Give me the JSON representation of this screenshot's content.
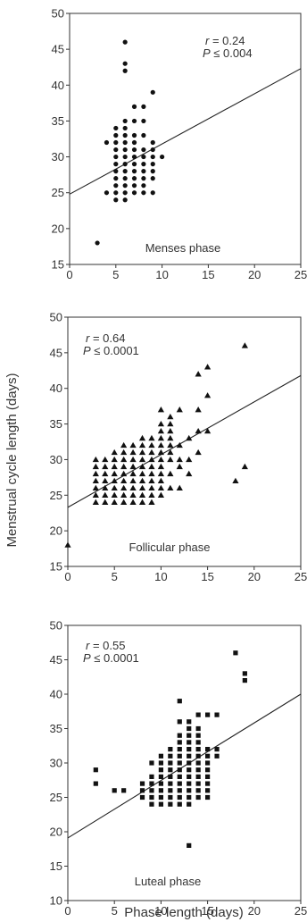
{
  "chart_data": {
    "ylabel": "Menstrual cycle length (days)",
    "xlabel": "Phase length (days)",
    "panels": [
      {
        "type": "scatter",
        "marker": "circle",
        "name": "Menses phase",
        "r_label": "r",
        "r_value": "= 0.24",
        "p_label": "P",
        "p_value": "≤ 0.004",
        "xlim": [
          0,
          25
        ],
        "ylim": [
          15,
          50
        ],
        "xticks": [
          0,
          5,
          10,
          15,
          20,
          25
        ],
        "yticks": [
          15,
          20,
          25,
          30,
          35,
          40,
          45,
          50
        ],
        "trend": [
          [
            0,
            24.8
          ],
          [
            25,
            42.3
          ]
        ],
        "points": [
          [
            3,
            18
          ],
          [
            4,
            25
          ],
          [
            4,
            32
          ],
          [
            5,
            24
          ],
          [
            5,
            25
          ],
          [
            5,
            26
          ],
          [
            5,
            27
          ],
          [
            5,
            28
          ],
          [
            5,
            29
          ],
          [
            5,
            30
          ],
          [
            5,
            31
          ],
          [
            5,
            32
          ],
          [
            5,
            33
          ],
          [
            5,
            34
          ],
          [
            6,
            24
          ],
          [
            6,
            25
          ],
          [
            6,
            26
          ],
          [
            6,
            27
          ],
          [
            6,
            28
          ],
          [
            6,
            29
          ],
          [
            6,
            30
          ],
          [
            6,
            31
          ],
          [
            6,
            32
          ],
          [
            6,
            33
          ],
          [
            6,
            34
          ],
          [
            6,
            35
          ],
          [
            6,
            42
          ],
          [
            6,
            43
          ],
          [
            6,
            46
          ],
          [
            7,
            25
          ],
          [
            7,
            26
          ],
          [
            7,
            27
          ],
          [
            7,
            28
          ],
          [
            7,
            29
          ],
          [
            7,
            30
          ],
          [
            7,
            31
          ],
          [
            7,
            32
          ],
          [
            7,
            33
          ],
          [
            7,
            35
          ],
          [
            7,
            37
          ],
          [
            8,
            25
          ],
          [
            8,
            26
          ],
          [
            8,
            27
          ],
          [
            8,
            28
          ],
          [
            8,
            29
          ],
          [
            8,
            30
          ],
          [
            8,
            31
          ],
          [
            8,
            33
          ],
          [
            8,
            35
          ],
          [
            8,
            37
          ],
          [
            9,
            25
          ],
          [
            9,
            27
          ],
          [
            9,
            28
          ],
          [
            9,
            29
          ],
          [
            9,
            30
          ],
          [
            9,
            31
          ],
          [
            9,
            32
          ],
          [
            9,
            39
          ],
          [
            10,
            30
          ]
        ]
      },
      {
        "type": "scatter",
        "marker": "triangle",
        "name": "Follicular phase",
        "r_label": "r",
        "r_value": "= 0.64",
        "p_label": "P",
        "p_value": "≤ 0.0001",
        "xlim": [
          0,
          25
        ],
        "ylim": [
          15,
          50
        ],
        "xticks": [
          0,
          5,
          10,
          15,
          20,
          25
        ],
        "yticks": [
          15,
          20,
          25,
          30,
          35,
          40,
          45,
          50
        ],
        "trend": [
          [
            0,
            23.3
          ],
          [
            25,
            41.8
          ]
        ],
        "points": [
          [
            0,
            18
          ],
          [
            3,
            24
          ],
          [
            3,
            25
          ],
          [
            3,
            26
          ],
          [
            3,
            27
          ],
          [
            3,
            28
          ],
          [
            3,
            29
          ],
          [
            3,
            30
          ],
          [
            4,
            24
          ],
          [
            4,
            25
          ],
          [
            4,
            26
          ],
          [
            4,
            27
          ],
          [
            4,
            28
          ],
          [
            4,
            29
          ],
          [
            4,
            30
          ],
          [
            5,
            24
          ],
          [
            5,
            25
          ],
          [
            5,
            26
          ],
          [
            5,
            27
          ],
          [
            5,
            28
          ],
          [
            5,
            29
          ],
          [
            5,
            30
          ],
          [
            5,
            31
          ],
          [
            6,
            24
          ],
          [
            6,
            25
          ],
          [
            6,
            26
          ],
          [
            6,
            27
          ],
          [
            6,
            28
          ],
          [
            6,
            29
          ],
          [
            6,
            30
          ],
          [
            6,
            31
          ],
          [
            6,
            32
          ],
          [
            7,
            24
          ],
          [
            7,
            25
          ],
          [
            7,
            26
          ],
          [
            7,
            27
          ],
          [
            7,
            28
          ],
          [
            7,
            29
          ],
          [
            7,
            30
          ],
          [
            7,
            31
          ],
          [
            7,
            32
          ],
          [
            8,
            24
          ],
          [
            8,
            25
          ],
          [
            8,
            26
          ],
          [
            8,
            27
          ],
          [
            8,
            28
          ],
          [
            8,
            29
          ],
          [
            8,
            30
          ],
          [
            8,
            31
          ],
          [
            8,
            32
          ],
          [
            8,
            33
          ],
          [
            9,
            24
          ],
          [
            9,
            25
          ],
          [
            9,
            26
          ],
          [
            9,
            27
          ],
          [
            9,
            28
          ],
          [
            9,
            29
          ],
          [
            9,
            30
          ],
          [
            9,
            31
          ],
          [
            9,
            32
          ],
          [
            9,
            33
          ],
          [
            10,
            25
          ],
          [
            10,
            26
          ],
          [
            10,
            27
          ],
          [
            10,
            28
          ],
          [
            10,
            29
          ],
          [
            10,
            30
          ],
          [
            10,
            31
          ],
          [
            10,
            32
          ],
          [
            10,
            33
          ],
          [
            10,
            34
          ],
          [
            10,
            35
          ],
          [
            10,
            37
          ],
          [
            11,
            26
          ],
          [
            11,
            28
          ],
          [
            11,
            30
          ],
          [
            11,
            31
          ],
          [
            11,
            32
          ],
          [
            11,
            33
          ],
          [
            11,
            34
          ],
          [
            11,
            35
          ],
          [
            11,
            36
          ],
          [
            12,
            26
          ],
          [
            12,
            29
          ],
          [
            12,
            30
          ],
          [
            12,
            32
          ],
          [
            12,
            37
          ],
          [
            13,
            28
          ],
          [
            13,
            30
          ],
          [
            13,
            33
          ],
          [
            14,
            31
          ],
          [
            14,
            34
          ],
          [
            14,
            37
          ],
          [
            14,
            42
          ],
          [
            15,
            34
          ],
          [
            15,
            39
          ],
          [
            15,
            43
          ],
          [
            18,
            27
          ],
          [
            19,
            29
          ],
          [
            19,
            46
          ]
        ]
      },
      {
        "type": "scatter",
        "marker": "square",
        "name": "Luteal phase",
        "r_label": "r",
        "r_value": "= 0.55",
        "p_label": "P",
        "p_value": "≤ 0.0001",
        "xlim": [
          0,
          25
        ],
        "ylim": [
          10,
          50
        ],
        "xticks": [
          0,
          5,
          10,
          15,
          20,
          25
        ],
        "yticks": [
          10,
          15,
          20,
          25,
          30,
          35,
          40,
          45,
          50
        ],
        "trend": [
          [
            0,
            19.1
          ],
          [
            25,
            40.0
          ]
        ],
        "points": [
          [
            3,
            27
          ],
          [
            3,
            29
          ],
          [
            5,
            26
          ],
          [
            6,
            26
          ],
          [
            8,
            25
          ],
          [
            8,
            26
          ],
          [
            8,
            27
          ],
          [
            9,
            24
          ],
          [
            9,
            25
          ],
          [
            9,
            26
          ],
          [
            9,
            27
          ],
          [
            9,
            28
          ],
          [
            9,
            30
          ],
          [
            10,
            24
          ],
          [
            10,
            25
          ],
          [
            10,
            26
          ],
          [
            10,
            27
          ],
          [
            10,
            28
          ],
          [
            10,
            29
          ],
          [
            10,
            30
          ],
          [
            10,
            31
          ],
          [
            11,
            24
          ],
          [
            11,
            25
          ],
          [
            11,
            26
          ],
          [
            11,
            27
          ],
          [
            11,
            28
          ],
          [
            11,
            29
          ],
          [
            11,
            30
          ],
          [
            11,
            31
          ],
          [
            11,
            32
          ],
          [
            12,
            24
          ],
          [
            12,
            25
          ],
          [
            12,
            26
          ],
          [
            12,
            27
          ],
          [
            12,
            28
          ],
          [
            12,
            29
          ],
          [
            12,
            30
          ],
          [
            12,
            31
          ],
          [
            12,
            32
          ],
          [
            12,
            33
          ],
          [
            12,
            34
          ],
          [
            12,
            36
          ],
          [
            12,
            39
          ],
          [
            13,
            18
          ],
          [
            13,
            24
          ],
          [
            13,
            25
          ],
          [
            13,
            26
          ],
          [
            13,
            27
          ],
          [
            13,
            28
          ],
          [
            13,
            29
          ],
          [
            13,
            30
          ],
          [
            13,
            31
          ],
          [
            13,
            32
          ],
          [
            13,
            33
          ],
          [
            13,
            34
          ],
          [
            13,
            35
          ],
          [
            13,
            36
          ],
          [
            14,
            25
          ],
          [
            14,
            26
          ],
          [
            14,
            27
          ],
          [
            14,
            28
          ],
          [
            14,
            29
          ],
          [
            14,
            30
          ],
          [
            14,
            31
          ],
          [
            14,
            32
          ],
          [
            14,
            33
          ],
          [
            14,
            34
          ],
          [
            14,
            35
          ],
          [
            14,
            37
          ],
          [
            15,
            25
          ],
          [
            15,
            26
          ],
          [
            15,
            27
          ],
          [
            15,
            28
          ],
          [
            15,
            29
          ],
          [
            15,
            30
          ],
          [
            15,
            31
          ],
          [
            15,
            32
          ],
          [
            15,
            37
          ],
          [
            16,
            31
          ],
          [
            16,
            32
          ],
          [
            16,
            37
          ],
          [
            18,
            46
          ],
          [
            19,
            42
          ],
          [
            19,
            43
          ]
        ]
      }
    ]
  }
}
